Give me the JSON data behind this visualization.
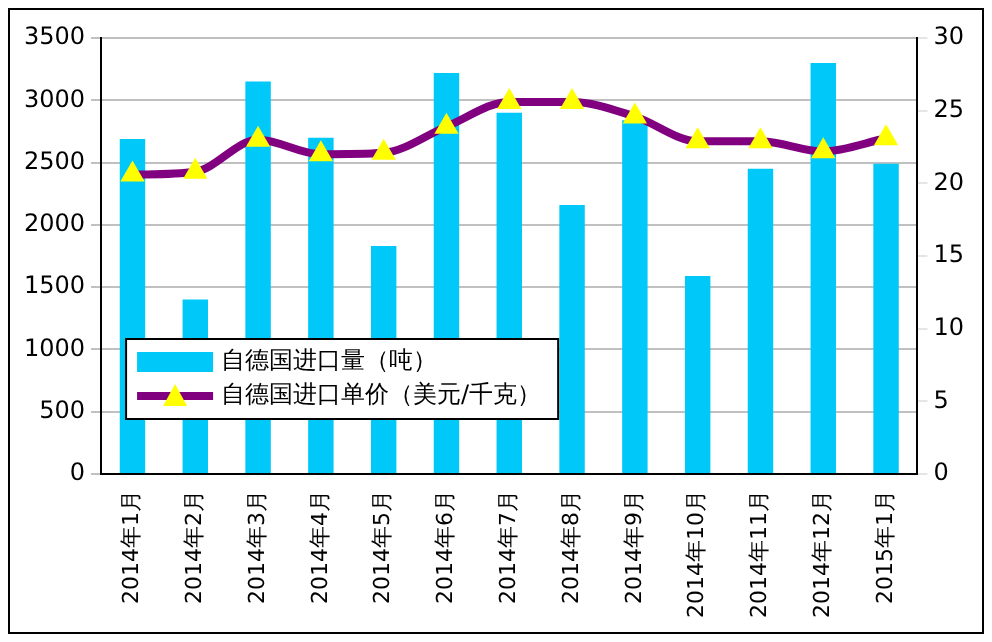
{
  "chart_data": {
    "type": "bar",
    "categories": [
      "2014年1月",
      "2014年2月",
      "2014年3月",
      "2014年4月",
      "2014年5月",
      "2014年6月",
      "2014年7月",
      "2014年8月",
      "2014年9月",
      "2014年10月",
      "2014年11月",
      "2014年12月",
      "2015年1月"
    ],
    "series": [
      {
        "name": "自德国进口量（吨）",
        "type": "bar",
        "color": "#00c8f8",
        "values": [
          2690,
          1400,
          3150,
          2700,
          1830,
          3220,
          2900,
          2160,
          2840,
          1590,
          2450,
          3300,
          2490
        ]
      },
      {
        "name": "自德国进口单价（美元/千克）",
        "type": "line",
        "axis": "y2",
        "color": "#800080",
        "marker": "triangle",
        "values": [
          20.6,
          20.8,
          23.0,
          22.0,
          22.1,
          23.9,
          25.6,
          25.6,
          24.6,
          22.9,
          22.9,
          22.2,
          23.1
        ]
      }
    ],
    "ylim": [
      0,
      3500
    ],
    "yticks": [
      0,
      500,
      1000,
      1500,
      2000,
      2500,
      3000,
      3500
    ],
    "y2lim": [
      0,
      30
    ],
    "y2ticks": [
      0,
      5,
      10,
      15,
      20,
      25,
      30
    ],
    "grid": "y",
    "legend": "bottom left"
  }
}
